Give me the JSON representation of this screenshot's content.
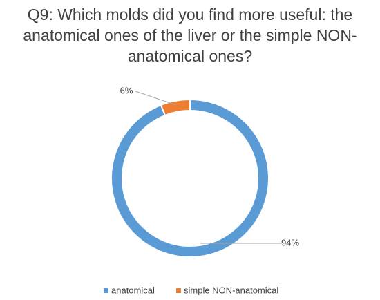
{
  "chart_data": {
    "type": "donut",
    "title": "Q9: Which molds did you find more useful: the anatomical ones of the liver or the simple NON-anatomical ones?",
    "categories": [
      "anatomical",
      "simple NON-anatomical"
    ],
    "values": [
      94,
      6
    ],
    "value_labels": [
      "94%",
      "6%"
    ],
    "colors": [
      "#5b9bd5",
      "#ed7d31"
    ],
    "legend": "bottom"
  }
}
